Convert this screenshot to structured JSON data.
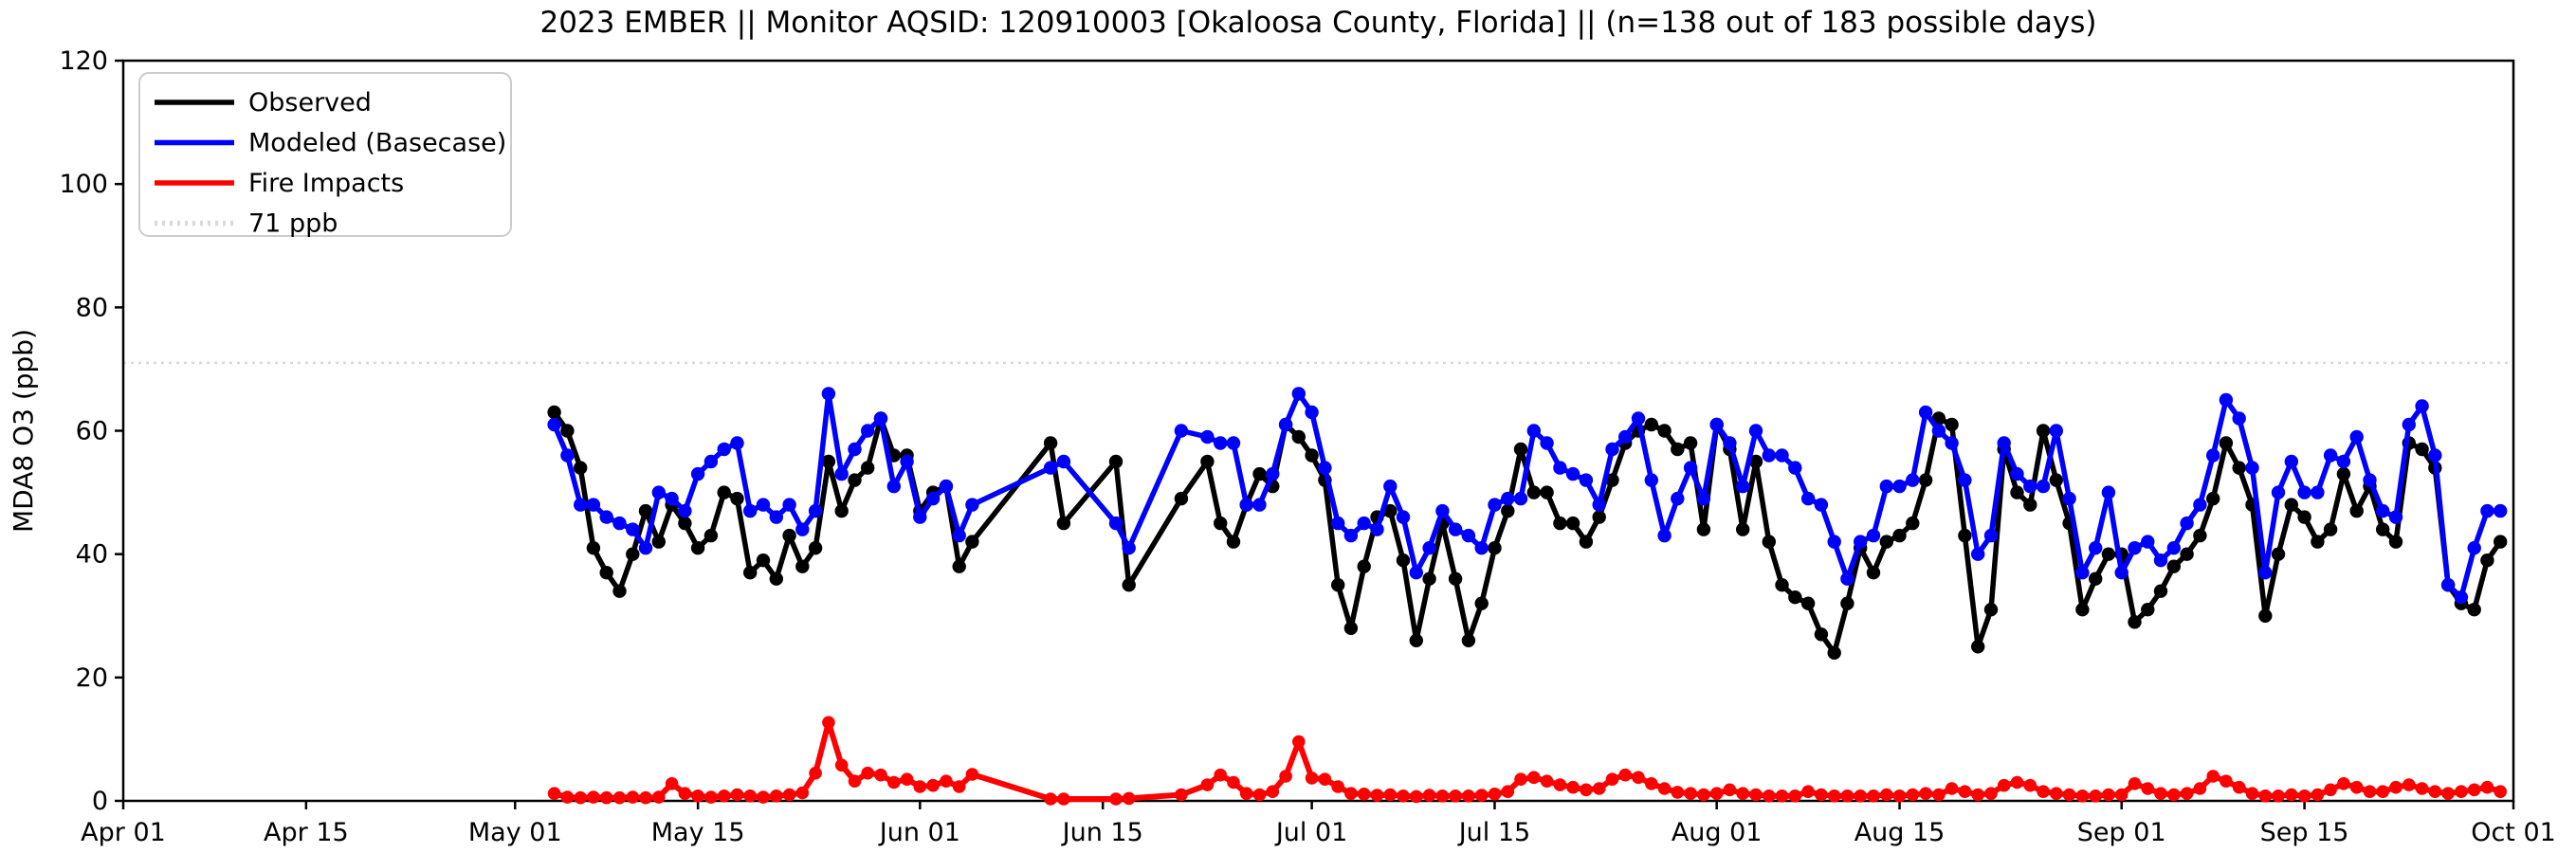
{
  "title": "2023 EMBER || Monitor AQSID: 120910003 [Okaloosa County, Florida] || (n=138 out of 183 possible days)",
  "chart_data": {
    "type": "line",
    "title": "2023 EMBER || Monitor AQSID: 120910003 [Okaloosa County, Florida] || (n=138 out of 183 possible days)",
    "xlabel": "",
    "ylabel": "MDA8 O3 (ppb)",
    "ylim": [
      0,
      120
    ],
    "yticks": [
      0,
      20,
      40,
      60,
      80,
      100,
      120
    ],
    "xtick_labels": [
      "Apr 01",
      "Apr 15",
      "May 01",
      "May 15",
      "Jun 01",
      "Jun 15",
      "Jul 01",
      "Jul 15",
      "Aug 01",
      "Aug 15",
      "Sep 01",
      "Sep 15",
      "Oct 01"
    ],
    "xtick_days": [
      0,
      14,
      30,
      44,
      61,
      75,
      91,
      105,
      122,
      136,
      153,
      167,
      183
    ],
    "x_total_days": 183,
    "x_axis_start_label": "Apr 01",
    "data_start_date": "2023-05-04",
    "data_start_day_index": 33,
    "n_days_with_data": 138,
    "n_possible_days": 183,
    "grid": false,
    "legend_position": "upper left",
    "reference_line": {
      "label": "71 ppb",
      "value": 71,
      "color": "#d9d9d9",
      "style": "dotted"
    },
    "series": [
      {
        "name": "Observed",
        "color": "#000000",
        "values": [
          63,
          60,
          54,
          41,
          37,
          34,
          40,
          47,
          42,
          48,
          45,
          41,
          43,
          50,
          49,
          37,
          39,
          36,
          43,
          38,
          41,
          55,
          47,
          52,
          54,
          62,
          56,
          56,
          47,
          50,
          51,
          38,
          42,
          null,
          null,
          null,
          null,
          null,
          58,
          45,
          null,
          null,
          null,
          55,
          35,
          null,
          null,
          null,
          49,
          null,
          55,
          45,
          42,
          48,
          53,
          51,
          61,
          59,
          56,
          52,
          35,
          28,
          38,
          46,
          47,
          39,
          26,
          36,
          45,
          36,
          26,
          32,
          41,
          47,
          57,
          50,
          50,
          45,
          45,
          42,
          46,
          52,
          58,
          60,
          61,
          60,
          57,
          58,
          44,
          61,
          57,
          44,
          55,
          42,
          35,
          33,
          32,
          27,
          24,
          32,
          41,
          37,
          42,
          43,
          45,
          52,
          62,
          61,
          43,
          25,
          31,
          57,
          50,
          48,
          60,
          52,
          45,
          31,
          36,
          40,
          40,
          29,
          31,
          34,
          38,
          40,
          43,
          49,
          58,
          54,
          48,
          30,
          40,
          48,
          46,
          42,
          44,
          53,
          47,
          51,
          44,
          42,
          58,
          57,
          54,
          35,
          32,
          31,
          39,
          42
        ]
      },
      {
        "name": "Modeled (Basecase)",
        "color": "#0000ff",
        "values": [
          61,
          56,
          48,
          48,
          46,
          45,
          44,
          41,
          50,
          49,
          47,
          53,
          55,
          57,
          58,
          47,
          48,
          46,
          48,
          44,
          47,
          66,
          53,
          57,
          60,
          62,
          51,
          55,
          46,
          49,
          51,
          43,
          48,
          null,
          null,
          null,
          null,
          null,
          54,
          55,
          null,
          null,
          null,
          45,
          41,
          null,
          null,
          null,
          60,
          null,
          59,
          58,
          58,
          48,
          48,
          53,
          61,
          66,
          63,
          54,
          45,
          43,
          45,
          44,
          51,
          46,
          37,
          41,
          47,
          44,
          43,
          41,
          48,
          49,
          49,
          60,
          58,
          54,
          53,
          52,
          48,
          57,
          59,
          62,
          52,
          43,
          49,
          54,
          49,
          61,
          58,
          51,
          60,
          56,
          56,
          54,
          49,
          48,
          42,
          36,
          42,
          43,
          51,
          51,
          52,
          63,
          60,
          58,
          52,
          40,
          43,
          58,
          53,
          51,
          51,
          60,
          49,
          37,
          41,
          50,
          37,
          41,
          42,
          39,
          41,
          45,
          48,
          56,
          65,
          62,
          54,
          37,
          50,
          55,
          50,
          50,
          56,
          55,
          59,
          52,
          47,
          46,
          61,
          64,
          56,
          35,
          33,
          41,
          47,
          47
        ]
      },
      {
        "name": "Fire Impacts",
        "color": "#ff0000",
        "values": [
          1.2,
          0.6,
          0.5,
          0.6,
          0.5,
          0.5,
          0.6,
          0.5,
          0.6,
          2.8,
          1.2,
          0.8,
          0.6,
          0.8,
          1,
          0.8,
          0.6,
          0.8,
          1,
          1.3,
          4.5,
          12.7,
          5.8,
          3.2,
          4.5,
          4.2,
          3,
          3.5,
          2.3,
          2.5,
          3.2,
          2.3,
          4.3,
          null,
          null,
          null,
          null,
          null,
          0.3,
          0.3,
          null,
          null,
          null,
          0.3,
          0.4,
          null,
          null,
          null,
          1,
          null,
          2.6,
          4.2,
          3,
          1.2,
          1,
          1.5,
          4,
          9.6,
          3.7,
          3.5,
          2.3,
          1.2,
          1.1,
          0.9,
          1,
          0.8,
          0.7,
          0.9,
          0.8,
          0.8,
          0.8,
          0.9,
          1.1,
          1.5,
          3.5,
          3.8,
          3.2,
          2.6,
          2.2,
          1.8,
          2,
          3.5,
          4.2,
          3.8,
          2.8,
          2,
          1.4,
          1.2,
          1,
          1.2,
          1.8,
          1.2,
          1,
          0.8,
          0.8,
          0.8,
          1.5,
          1,
          0.8,
          0.8,
          0.8,
          0.8,
          1,
          0.8,
          1,
          1.2,
          1,
          2,
          1.5,
          1,
          1.2,
          2.5,
          3,
          2.5,
          1.5,
          1.2,
          1,
          0.8,
          0.8,
          1,
          1,
          2.8,
          2,
          1.2,
          1,
          1.2,
          2,
          4,
          3.2,
          2.2,
          1.2,
          0.8,
          0.8,
          1,
          0.8,
          1,
          1.8,
          2.8,
          2.2,
          1.5,
          1.5,
          2.2,
          2.6,
          2,
          1.5,
          1.2,
          1.5,
          1.8,
          2.2,
          1.5
        ]
      }
    ],
    "legend_entries": [
      "Observed",
      "Modeled (Basecase)",
      "Fire Impacts",
      "71 ppb"
    ]
  }
}
